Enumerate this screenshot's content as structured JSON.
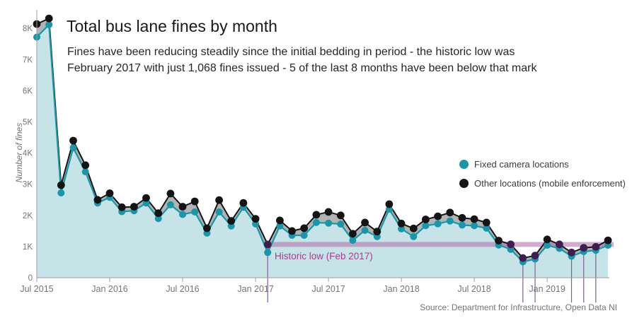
{
  "header": {
    "title": "Total bus lane fines by month",
    "subtitle_line1": "Fines have been reducing steadily since the initial bedding in period - the historic low was",
    "subtitle_line2": "February 2017 with just 1,068 fines issued - 5 of the last 8 months have been below that mark"
  },
  "legend": [
    {
      "label": "Fixed camera locations",
      "color": "#1897A8"
    },
    {
      "label": "Other locations (mobile enforcement)",
      "color": "#141414"
    }
  ],
  "annotation": {
    "label": "Historic low (Feb 2017)",
    "value": 1068
  },
  "source": "Source: Department for Infrastructure, Open Data NI",
  "colors": {
    "fixed": "#1897A8",
    "fixed_fill": "#C6E3E7",
    "total": "#141414",
    "stack_gap_fill": "#B3B3B3",
    "historic_low_band": "rgba(177,118,176,0.6)",
    "historic_low_text": "#A63F8F",
    "below_mark_dot": "#411C4F",
    "below_mark_line": "#7E5E99",
    "axis": "#9E9E9E",
    "axis_text": "#757575"
  },
  "chart_data": {
    "type": "area",
    "title": "Total bus lane fines by month",
    "ylabel": "Number of fines",
    "xlabel": "",
    "ylim": [
      0,
      8500
    ],
    "grid": false,
    "legend_position": "right-middle",
    "x": [
      "Jul 2015",
      "Aug 2015",
      "Sep 2015",
      "Oct 2015",
      "Nov 2015",
      "Dec 2015",
      "Jan 2016",
      "Feb 2016",
      "Mar 2016",
      "Apr 2016",
      "May 2016",
      "Jun 2016",
      "Jul 2016",
      "Aug 2016",
      "Sep 2016",
      "Oct 2016",
      "Nov 2016",
      "Dec 2016",
      "Jan 2017",
      "Feb 2017",
      "Mar 2017",
      "Apr 2017",
      "May 2017",
      "Jun 2017",
      "Jul 2017",
      "Aug 2017",
      "Sep 2017",
      "Oct 2017",
      "Nov 2017",
      "Dec 2017",
      "Jan 2018",
      "Feb 2018",
      "Mar 2018",
      "Apr 2018",
      "May 2018",
      "Jun 2018",
      "Jul 2018",
      "Aug 2018",
      "Sep 2018",
      "Oct 2018",
      "Nov 2018",
      "Dec 2018",
      "Jan 2019",
      "Feb 2019",
      "Mar 2019",
      "Apr 2019",
      "May 2019",
      "Jun 2019"
    ],
    "series": [
      {
        "name": "Fixed camera locations",
        "values": [
          7720,
          8120,
          2720,
          4170,
          3400,
          2400,
          2580,
          2120,
          2150,
          2400,
          1900,
          2340,
          2030,
          2110,
          1430,
          2110,
          1660,
          2260,
          1730,
          810,
          1660,
          1360,
          1360,
          1770,
          1750,
          1720,
          1200,
          1520,
          1320,
          2200,
          1570,
          1320,
          1670,
          1730,
          1820,
          1690,
          1670,
          1590,
          1050,
          910,
          510,
          600,
          1040,
          940,
          690,
          840,
          880,
          1040
        ]
      },
      {
        "name": "Other locations (mobile enforcement)",
        "note": "plotted as stacked top line = total fines (fixed + other)",
        "values": [
          8140,
          8320,
          2970,
          4400,
          3610,
          2500,
          2710,
          2260,
          2280,
          2560,
          2070,
          2700,
          2280,
          2450,
          1590,
          2490,
          1820,
          2400,
          1890,
          1068,
          1840,
          1500,
          1590,
          2020,
          2110,
          2000,
          1410,
          1770,
          1480,
          2360,
          1740,
          1580,
          1870,
          1970,
          2090,
          1920,
          1880,
          1770,
          1190,
          1070,
          630,
          710,
          1230,
          1070,
          810,
          960,
          990,
          1200
        ]
      }
    ],
    "y_ticks": [
      {
        "label": "0",
        "value": 0
      },
      {
        "label": "1K",
        "value": 1000
      },
      {
        "label": "2K",
        "value": 2000
      },
      {
        "label": "3K",
        "value": 3000
      },
      {
        "label": "4K",
        "value": 4000
      },
      {
        "label": "5K",
        "value": 5000
      },
      {
        "label": "6K",
        "value": 6000
      },
      {
        "label": "7K",
        "value": 7000
      },
      {
        "label": "8K",
        "value": 8000
      }
    ],
    "x_ticks": [
      "Jul 2015",
      "Jan 2016",
      "Jul 2016",
      "Jan 2017",
      "Jul 2017",
      "Jan 2018",
      "Jul 2018",
      "Jan 2019"
    ],
    "historic_low": {
      "month": "Feb 2017",
      "value": 1068
    },
    "below_mark_dot_months": [
      "Feb 2017",
      "Oct 2018",
      "Nov 2018",
      "Dec 2018",
      "Feb 2019",
      "Mar 2019",
      "Apr 2019",
      "May 2019"
    ],
    "below_mark_line_months": [
      "Feb 2017",
      "Nov 2018",
      "Dec 2018",
      "Mar 2019",
      "Apr 2019",
      "May 2019"
    ]
  }
}
